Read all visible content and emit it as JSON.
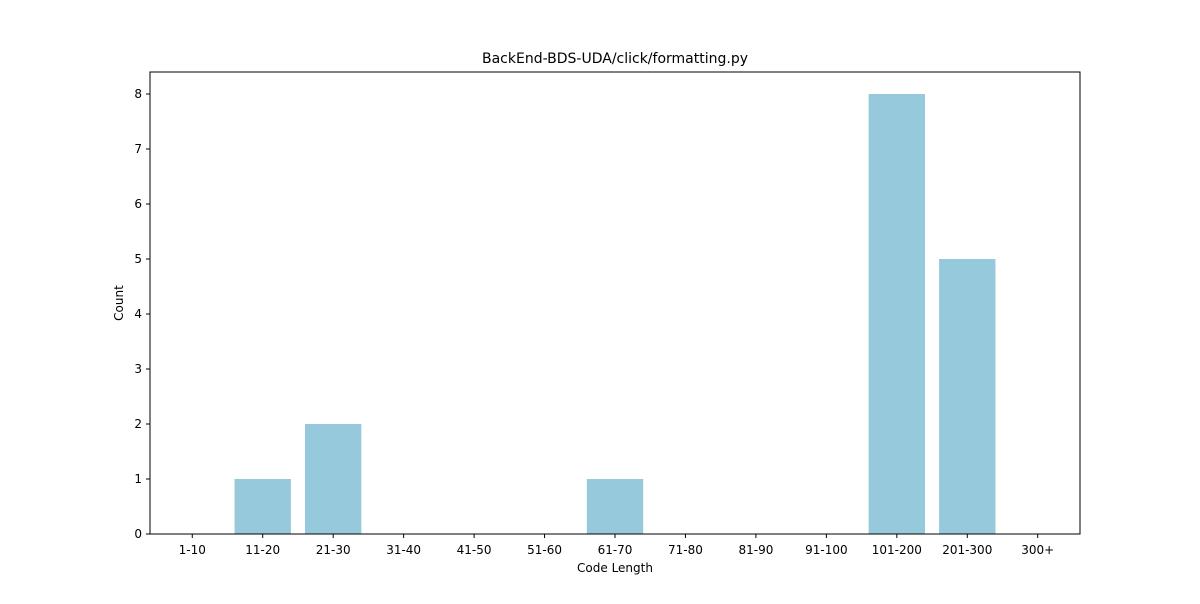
{
  "chart_data": {
    "type": "bar",
    "title": "BackEnd-BDS-UDA/click/formatting.py",
    "xlabel": "Code Length",
    "ylabel": "Count",
    "categories": [
      "1-10",
      "11-20",
      "21-30",
      "31-40",
      "41-50",
      "51-60",
      "61-70",
      "71-80",
      "81-90",
      "91-100",
      "101-200",
      "201-300",
      "300+"
    ],
    "values": [
      0,
      1,
      2,
      0,
      0,
      0,
      1,
      0,
      0,
      0,
      8,
      5,
      0
    ],
    "yticks": [
      "0",
      "1",
      "2",
      "3",
      "4",
      "5",
      "6",
      "7",
      "8"
    ],
    "ylim": [
      0,
      8.4
    ],
    "grid": false,
    "bar_color": "#96c9dc"
  }
}
